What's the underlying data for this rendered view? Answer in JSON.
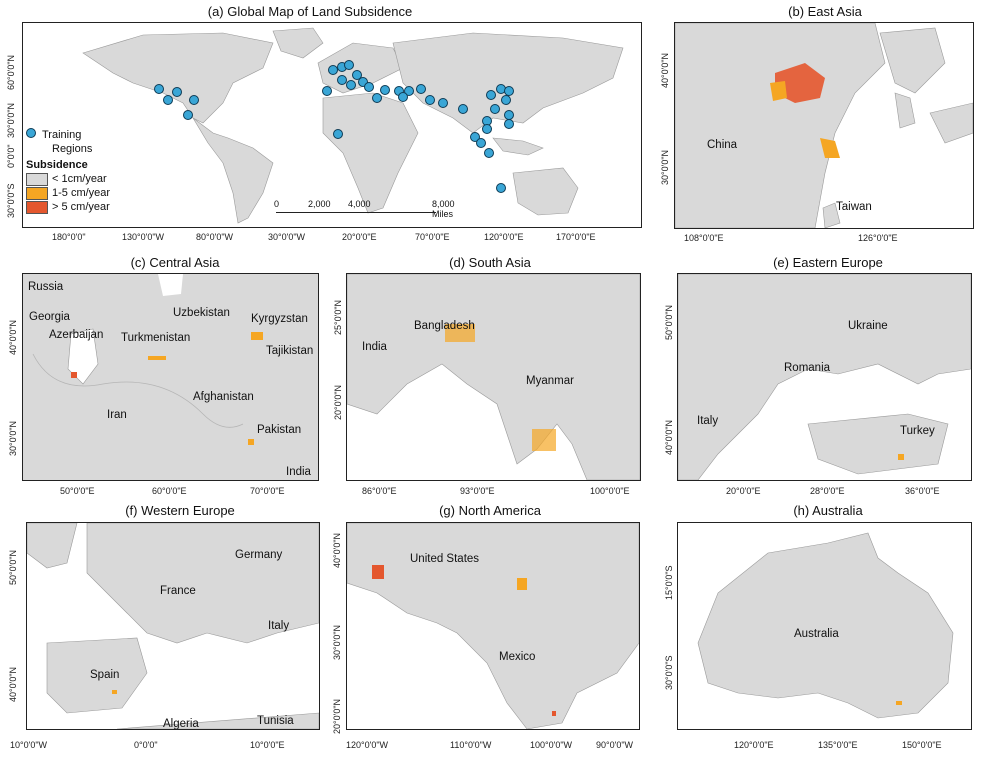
{
  "colors": {
    "land": "#d9d9d9",
    "sea": "#ffffff",
    "low": "#d9d9d9",
    "mid": "#f5a623",
    "high": "#e4572e",
    "dot": "#3aa6d6",
    "border": "#9a9a9a"
  },
  "panel_a": {
    "title": "(a) Global Map of Land Subsidence",
    "legend": {
      "training_label_1": "Training",
      "training_label_2": "Regions",
      "subsidence_title": "Subsidence",
      "items": [
        "< 1cm/year",
        "1-5 cm/year",
        "> 5 cm/year"
      ]
    },
    "scale": {
      "ticks": [
        "0",
        "2,000",
        "4,000",
        "8,000 Miles"
      ]
    },
    "xticks": [
      "180°0'0\"",
      "130°0'0\"W",
      "80°0'0\"W",
      "30°0'0\"W",
      "20°0'0\"E",
      "70°0'0\"E",
      "120°0'0\"E",
      "170°0'0\"E"
    ],
    "yticks": [
      "60°0'0\"N",
      "30°0'0\"N",
      "0°0'0\"",
      "30°0'0\"S"
    ]
  },
  "panel_b": {
    "title": "(b) East Asia",
    "labels": [
      "China",
      "Taiwan"
    ],
    "xticks": [
      "108°0'0\"E",
      "126°0'0\"E"
    ],
    "yticks": [
      "40°0'0\"N",
      "30°0'0\"N"
    ]
  },
  "panel_c": {
    "title": "(c) Central Asia",
    "labels": [
      "Russia",
      "Georgia",
      "Azerbaijan",
      "Uzbekistan",
      "Kyrgyzstan",
      "Turkmenistan",
      "Tajikistan",
      "Iran",
      "Afghanistan",
      "Pakistan",
      "India"
    ],
    "xticks": [
      "50°0'0\"E",
      "60°0'0\"E",
      "70°0'0\"E"
    ],
    "yticks": [
      "40°0'0\"N",
      "30°0'0\"N"
    ]
  },
  "panel_d": {
    "title": "(d) South Asia",
    "labels": [
      "Bangladesh",
      "India",
      "Myanmar"
    ],
    "xticks": [
      "86°0'0\"E",
      "93°0'0\"E",
      "100°0'0\"E"
    ],
    "yticks": [
      "25°0'0\"N",
      "20°0'0\"N"
    ]
  },
  "panel_e": {
    "title": "(e) Eastern Europe",
    "labels": [
      "Ukraine",
      "Romania",
      "Italy",
      "Turkey"
    ],
    "xticks": [
      "20°0'0\"E",
      "28°0'0\"E",
      "36°0'0\"E"
    ],
    "yticks": [
      "50°0'0\"N",
      "40°0'0\"N"
    ]
  },
  "panel_f": {
    "title": "(f) Western Europe",
    "labels": [
      "Germany",
      "France",
      "Italy",
      "Spain",
      "Algeria",
      "Tunisia"
    ],
    "xticks": [
      "10°0'0\"W",
      "0°0'0\"",
      "10°0'0\"E"
    ],
    "yticks": [
      "50°0'0\"N",
      "40°0'0\"N"
    ]
  },
  "panel_g": {
    "title": "(g) North America",
    "labels": [
      "United States",
      "Mexico"
    ],
    "xticks": [
      "120°0'0\"W",
      "110°0'0\"W",
      "100°0'0\"W",
      "90°0'0\"W"
    ],
    "yticks": [
      "40°0'0\"N",
      "30°0'0\"N",
      "20°0'0\"N"
    ]
  },
  "panel_h": {
    "title": "(h) Australia",
    "labels": [
      "Australia"
    ],
    "xticks": [
      "120°0'0\"E",
      "135°0'0\"E",
      "150°0'0\"E"
    ],
    "yticks": [
      "15°0'0\"S",
      "30°0'0\"S"
    ]
  }
}
